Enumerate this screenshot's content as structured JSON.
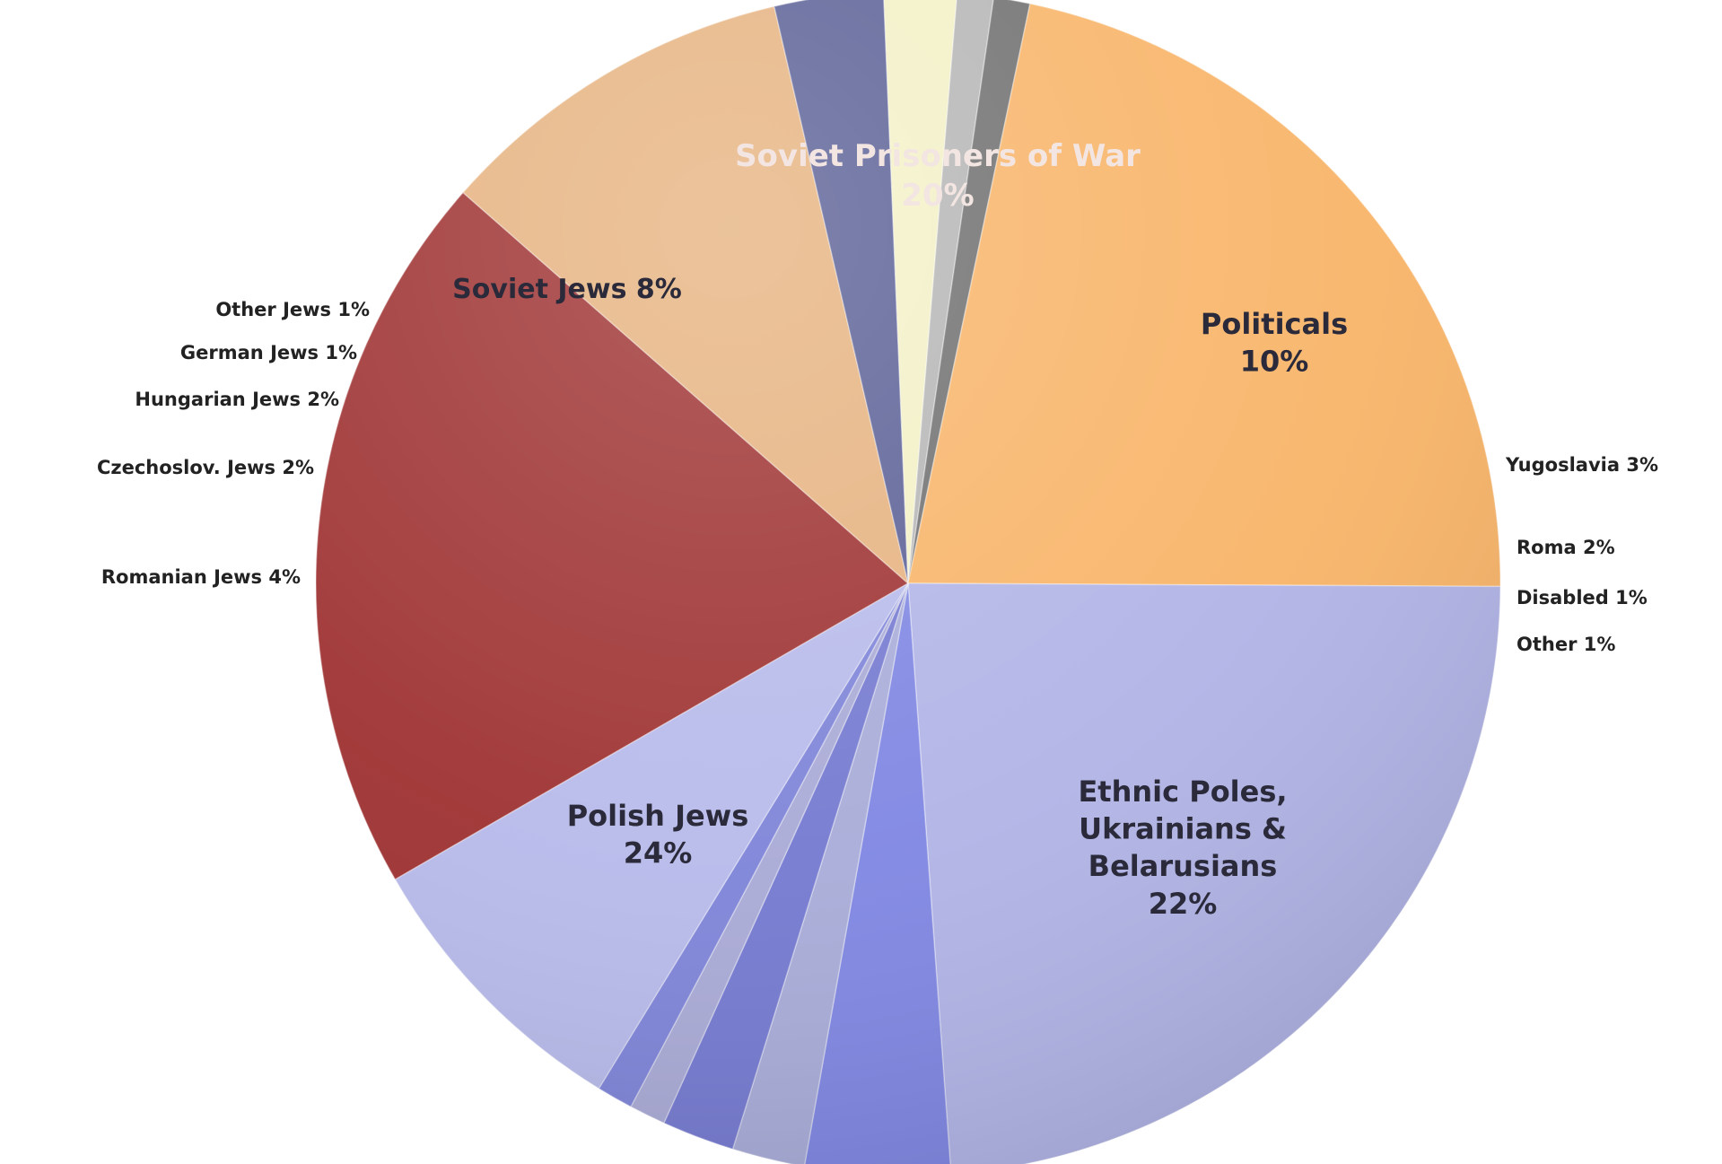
{
  "chart_data": {
    "type": "pie",
    "title": "",
    "slices": [
      {
        "label": "Soviet Prisoners of War",
        "value": 20,
        "value_label": "20%",
        "color": "#9e3131",
        "label_color": "#f3e6e2",
        "lines": [
          "Soviet Prisoners of War",
          "20%"
        ]
      },
      {
        "label": "Politicals",
        "value": 10,
        "value_label": "10%",
        "color": "#e6b27f",
        "label_color": "#2a2a3a",
        "lines": [
          "Politicals",
          "10%"
        ]
      },
      {
        "label": "Yugoslavia",
        "value": 3,
        "value_label": "3%",
        "color": "#5a5f95",
        "label_color": "#222222",
        "lines": [
          "Yugoslavia 3%"
        ]
      },
      {
        "label": "Roma",
        "value": 2,
        "value_label": "2%",
        "color": "#f3f1c6",
        "label_color": "#222222",
        "lines": [
          "Roma 2%"
        ]
      },
      {
        "label": "Disabled",
        "value": 1,
        "value_label": "1%",
        "color": "#b5b5b5",
        "label_color": "#222222",
        "lines": [
          "Disabled 1%"
        ]
      },
      {
        "label": "Other",
        "value": 1,
        "value_label": "1%",
        "color": "#6f6f6f",
        "label_color": "#222222",
        "lines": [
          "Other 1%"
        ]
      },
      {
        "label": "Ethnic Poles, Ukrainians & Belarusians",
        "value": 22,
        "value_label": "22%",
        "color": "#f8b468",
        "label_color": "#2a2a3a",
        "lines": [
          "Ethnic Poles,",
          "Ukrainians &",
          "Belarusians",
          "22%"
        ]
      },
      {
        "label": "Polish Jews",
        "value": 24,
        "value_label": "24%",
        "color": "#b1b4e6",
        "label_color": "#2a2a3a",
        "lines": [
          "Polish Jews",
          "24%"
        ]
      },
      {
        "label": "Romanian Jews",
        "value": 4,
        "value_label": "4%",
        "color": "#7f86e2",
        "label_color": "#222222",
        "lines": [
          "Romanian Jews 4%"
        ]
      },
      {
        "label": "Czechoslov. Jews",
        "value": 2,
        "value_label": "2%",
        "color": "#a8acd8",
        "label_color": "#222222",
        "lines": [
          "Czechoslov. Jews 2%"
        ]
      },
      {
        "label": "Hungarian Jews",
        "value": 2,
        "value_label": "2%",
        "color": "#7479d0",
        "label_color": "#222222",
        "lines": [
          "Hungarian Jews 2%"
        ]
      },
      {
        "label": "German Jews",
        "value": 1,
        "value_label": "1%",
        "color": "#a9aad6",
        "label_color": "#222222",
        "lines": [
          "German Jews 1%"
        ]
      },
      {
        "label": "Other Jews",
        "value": 1,
        "value_label": "1%",
        "color": "#7e84d8",
        "label_color": "#222222",
        "lines": [
          "Other Jews 1%"
        ]
      },
      {
        "label": "Soviet Jews",
        "value": 8,
        "value_label": "8%",
        "color": "#b7baea",
        "label_color": "#2a2a3a",
        "lines": [
          "Soviet Jews 8%"
        ]
      }
    ],
    "legend": "none",
    "label_style": "in-slice for large slices, outside for small slices"
  }
}
